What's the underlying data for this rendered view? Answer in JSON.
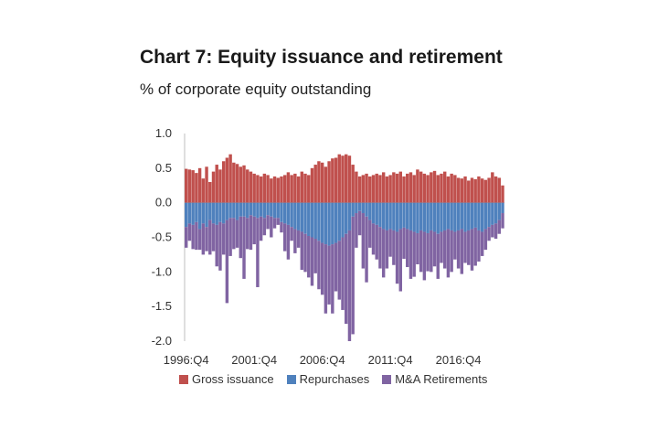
{
  "title": "Chart 7: Equity issuance and retirement",
  "subtitle": "% of corporate equity outstanding",
  "colors": {
    "gross_issuance": "#c0504d",
    "repurchases": "#4f81bd",
    "ma_retirements": "#8064a2",
    "axis": "#bfbfbf"
  },
  "legend": [
    {
      "label": "Gross issuance",
      "color_key": "gross_issuance"
    },
    {
      "label": "Repurchases",
      "color_key": "repurchases"
    },
    {
      "label": "M&A Retirements",
      "color_key": "ma_retirements"
    }
  ],
  "chart_data": {
    "type": "bar",
    "stacked": true,
    "ylim": [
      -2.0,
      1.0
    ],
    "yticks": [
      "1.0",
      "0.5",
      "0.0",
      "-0.5",
      "-1.0",
      "-1.5",
      "-2.0"
    ],
    "ytick_values": [
      1.0,
      0.5,
      0.0,
      -0.5,
      -1.0,
      -1.5,
      -2.0
    ],
    "xtick_labels": [
      "1996:Q4",
      "2001:Q4",
      "2006:Q4",
      "2011:Q4",
      "2016:Q4"
    ],
    "xtick_index": [
      0,
      20,
      40,
      60,
      80
    ],
    "categories": [
      "1996:Q4",
      "1997:Q1",
      "1997:Q2",
      "1997:Q3",
      "1997:Q4",
      "1998:Q1",
      "1998:Q2",
      "1998:Q3",
      "1998:Q4",
      "1999:Q1",
      "1999:Q2",
      "1999:Q3",
      "1999:Q4",
      "2000:Q1",
      "2000:Q2",
      "2000:Q3",
      "2000:Q4",
      "2001:Q1",
      "2001:Q2",
      "2001:Q3",
      "2001:Q4",
      "2002:Q1",
      "2002:Q2",
      "2002:Q3",
      "2002:Q4",
      "2003:Q1",
      "2003:Q2",
      "2003:Q3",
      "2003:Q4",
      "2004:Q1",
      "2004:Q2",
      "2004:Q3",
      "2004:Q4",
      "2005:Q1",
      "2005:Q2",
      "2005:Q3",
      "2005:Q4",
      "2006:Q1",
      "2006:Q2",
      "2006:Q3",
      "2006:Q4",
      "2007:Q1",
      "2007:Q2",
      "2007:Q3",
      "2007:Q4",
      "2008:Q1",
      "2008:Q2",
      "2008:Q3",
      "2008:Q4",
      "2009:Q1",
      "2009:Q2",
      "2009:Q3",
      "2009:Q4",
      "2010:Q1",
      "2010:Q2",
      "2010:Q3",
      "2010:Q4",
      "2011:Q1",
      "2011:Q2",
      "2011:Q3",
      "2011:Q4",
      "2012:Q1",
      "2012:Q2",
      "2012:Q3",
      "2012:Q4",
      "2013:Q1",
      "2013:Q2",
      "2013:Q3",
      "2013:Q4",
      "2014:Q1",
      "2014:Q2",
      "2014:Q3",
      "2014:Q4",
      "2015:Q1",
      "2015:Q2",
      "2015:Q3",
      "2015:Q4",
      "2016:Q1",
      "2016:Q2",
      "2016:Q3",
      "2016:Q4",
      "2017:Q1",
      "2017:Q2",
      "2017:Q3",
      "2017:Q4",
      "2018:Q1",
      "2018:Q2",
      "2018:Q3",
      "2018:Q4",
      "2019:Q1",
      "2019:Q2",
      "2019:Q3",
      "2019:Q4",
      "2020:Q1"
    ],
    "series": [
      {
        "name": "Gross issuance",
        "values": [
          0.49,
          0.48,
          0.47,
          0.43,
          0.5,
          0.35,
          0.52,
          0.3,
          0.45,
          0.55,
          0.48,
          0.6,
          0.65,
          0.7,
          0.58,
          0.56,
          0.52,
          0.54,
          0.48,
          0.45,
          0.42,
          0.4,
          0.38,
          0.42,
          0.4,
          0.35,
          0.38,
          0.36,
          0.38,
          0.4,
          0.44,
          0.4,
          0.42,
          0.38,
          0.45,
          0.42,
          0.4,
          0.5,
          0.55,
          0.6,
          0.58,
          0.52,
          0.6,
          0.64,
          0.65,
          0.7,
          0.68,
          0.7,
          0.68,
          0.55,
          0.45,
          0.38,
          0.4,
          0.42,
          0.38,
          0.4,
          0.42,
          0.4,
          0.44,
          0.38,
          0.4,
          0.44,
          0.42,
          0.45,
          0.38,
          0.42,
          0.44,
          0.4,
          0.48,
          0.45,
          0.42,
          0.4,
          0.44,
          0.46,
          0.4,
          0.42,
          0.45,
          0.38,
          0.42,
          0.4,
          0.36,
          0.35,
          0.38,
          0.32,
          0.36,
          0.34,
          0.38,
          0.35,
          0.33,
          0.36,
          0.44,
          0.38,
          0.36,
          0.25
        ]
      },
      {
        "name": "Repurchases",
        "values": [
          -0.35,
          -0.3,
          -0.32,
          -0.28,
          -0.38,
          -0.3,
          -0.35,
          -0.25,
          -0.3,
          -0.32,
          -0.28,
          -0.3,
          -0.25,
          -0.22,
          -0.22,
          -0.25,
          -0.2,
          -0.2,
          -0.22,
          -0.18,
          -0.2,
          -0.22,
          -0.2,
          -0.22,
          -0.18,
          -0.2,
          -0.22,
          -0.22,
          -0.28,
          -0.3,
          -0.32,
          -0.35,
          -0.38,
          -0.4,
          -0.42,
          -0.45,
          -0.48,
          -0.5,
          -0.52,
          -0.55,
          -0.58,
          -0.6,
          -0.62,
          -0.6,
          -0.58,
          -0.55,
          -0.5,
          -0.45,
          -0.4,
          -0.2,
          -0.15,
          -0.12,
          -0.15,
          -0.2,
          -0.25,
          -0.3,
          -0.32,
          -0.35,
          -0.38,
          -0.4,
          -0.38,
          -0.4,
          -0.42,
          -0.38,
          -0.36,
          -0.38,
          -0.4,
          -0.42,
          -0.44,
          -0.4,
          -0.42,
          -0.44,
          -0.4,
          -0.42,
          -0.45,
          -0.42,
          -0.4,
          -0.38,
          -0.4,
          -0.42,
          -0.4,
          -0.38,
          -0.42,
          -0.4,
          -0.38,
          -0.36,
          -0.4,
          -0.42,
          -0.38,
          -0.35,
          -0.32,
          -0.3,
          -0.25,
          -0.15
        ]
      },
      {
        "name": "M&A Retirements",
        "values": [
          -0.3,
          -0.25,
          -0.35,
          -0.4,
          -0.3,
          -0.45,
          -0.35,
          -0.5,
          -0.4,
          -0.6,
          -0.7,
          -0.45,
          -1.2,
          -0.55,
          -0.45,
          -0.4,
          -0.6,
          -0.9,
          -0.45,
          -0.5,
          -0.4,
          -1.0,
          -0.35,
          -0.25,
          -0.2,
          -0.3,
          -0.15,
          -0.1,
          -0.15,
          -0.4,
          -0.5,
          -0.2,
          -0.35,
          -0.25,
          -0.55,
          -0.55,
          -0.6,
          -0.7,
          -0.5,
          -0.7,
          -0.75,
          -1.0,
          -0.85,
          -1.0,
          -0.7,
          -0.85,
          -1.05,
          -1.3,
          -1.6,
          -1.7,
          -0.5,
          -0.35,
          -0.8,
          -0.95,
          -0.4,
          -0.45,
          -0.5,
          -0.6,
          -0.7,
          -0.55,
          -0.4,
          -0.5,
          -0.75,
          -0.9,
          -0.45,
          -0.55,
          -0.7,
          -0.65,
          -0.45,
          -0.6,
          -0.7,
          -0.55,
          -0.6,
          -0.5,
          -0.65,
          -0.45,
          -0.55,
          -0.7,
          -0.6,
          -0.4,
          -0.55,
          -0.65,
          -0.45,
          -0.5,
          -0.6,
          -0.55,
          -0.45,
          -0.35,
          -0.3,
          -0.2,
          -0.18,
          -0.22,
          -0.2,
          -0.22
        ]
      }
    ]
  }
}
